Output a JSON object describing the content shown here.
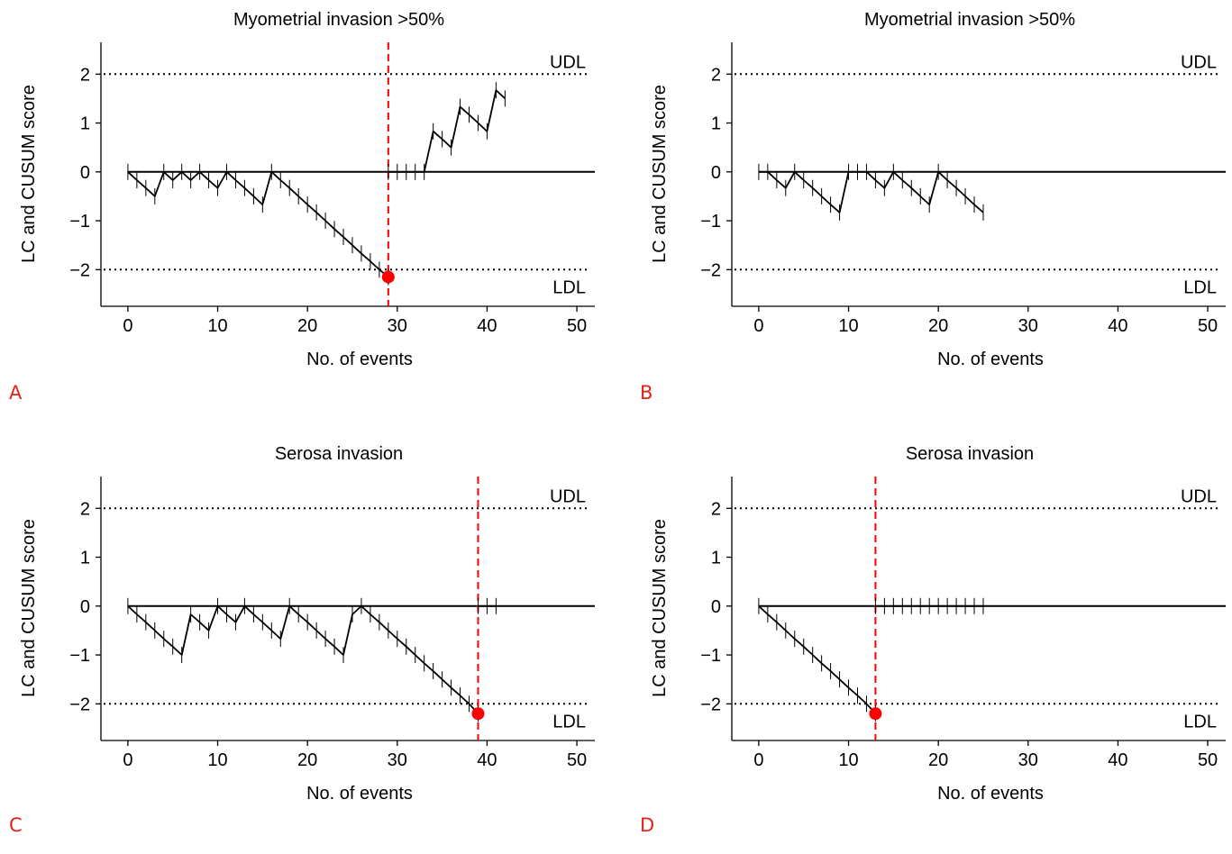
{
  "chart_data": [
    {
      "letter": "A",
      "type": "line",
      "title": "Myometrial invasion >50%",
      "xlabel": "No. of events",
      "ylabel": "LC and CUSUM score",
      "xlim": [
        -3,
        52
      ],
      "ylim": [
        -2.75,
        2.65
      ],
      "xticks": [
        0,
        10,
        20,
        30,
        40,
        50
      ],
      "yticks": [
        -2,
        -1,
        0,
        1,
        2
      ],
      "udl": 2,
      "ldl": -2,
      "udl_label": "UDL",
      "ldl_label": "LDL",
      "signal_x": 29,
      "signal_y": -2.15,
      "series": [
        {
          "x": [
            0,
            1,
            2,
            3,
            4,
            5,
            6,
            7,
            8,
            9,
            10,
            11,
            12,
            13,
            14,
            15,
            16,
            17,
            18,
            19,
            20,
            21,
            22,
            23,
            24,
            25,
            26,
            27,
            28,
            29
          ],
          "y": [
            0,
            -0.17,
            -0.33,
            -0.5,
            0,
            -0.17,
            0,
            -0.17,
            0,
            -0.17,
            -0.33,
            0,
            -0.17,
            -0.33,
            -0.5,
            -0.67,
            0,
            -0.17,
            -0.33,
            -0.5,
            -0.67,
            -0.83,
            -1,
            -1.17,
            -1.33,
            -1.5,
            -1.67,
            -1.83,
            -2,
            -2.15
          ]
        },
        {
          "x": [
            29,
            30,
            31,
            32,
            33,
            34,
            35,
            36,
            37,
            38,
            39,
            40,
            41,
            42
          ],
          "y": [
            0,
            0,
            0,
            0,
            0,
            0.83,
            0.67,
            0.5,
            1.33,
            1.17,
            1,
            0.83,
            1.67,
            1.5
          ]
        }
      ]
    },
    {
      "letter": "B",
      "type": "line",
      "title": "Myometrial invasion >50%",
      "xlabel": "No. of events",
      "ylabel": "LC and CUSUM score",
      "xlim": [
        -3,
        52
      ],
      "ylim": [
        -2.75,
        2.65
      ],
      "xticks": [
        0,
        10,
        20,
        30,
        40,
        50
      ],
      "yticks": [
        -2,
        -1,
        0,
        1,
        2
      ],
      "udl": 2,
      "ldl": -2,
      "udl_label": "UDL",
      "ldl_label": "LDL",
      "series": [
        {
          "x": [
            0,
            1,
            2,
            3,
            4,
            5,
            6,
            7,
            8,
            9,
            10,
            11,
            12,
            13,
            14,
            15,
            16,
            17,
            18,
            19,
            20,
            21,
            22,
            23,
            24,
            25
          ],
          "y": [
            0,
            0,
            -0.17,
            -0.33,
            0,
            -0.17,
            -0.33,
            -0.5,
            -0.67,
            -0.83,
            0,
            0,
            0,
            -0.17,
            -0.33,
            0,
            -0.17,
            -0.33,
            -0.5,
            -0.67,
            0,
            -0.17,
            -0.33,
            -0.5,
            -0.67,
            -0.83
          ]
        }
      ]
    },
    {
      "letter": "C",
      "type": "line",
      "title": "Serosa invasion",
      "xlabel": "No. of events",
      "ylabel": "LC and CUSUM score",
      "xlim": [
        -3,
        52
      ],
      "ylim": [
        -2.75,
        2.65
      ],
      "xticks": [
        0,
        10,
        20,
        30,
        40,
        50
      ],
      "yticks": [
        -2,
        -1,
        0,
        1,
        2
      ],
      "udl": 2,
      "ldl": -2,
      "udl_label": "UDL",
      "ldl_label": "LDL",
      "signal_x": 39,
      "signal_y": -2.2,
      "series": [
        {
          "x": [
            0,
            1,
            2,
            3,
            4,
            5,
            6,
            7,
            8,
            9,
            10,
            11,
            12,
            13,
            14,
            15,
            16,
            17,
            18,
            19,
            20,
            21,
            22,
            23,
            24,
            25,
            26,
            27,
            28,
            29,
            30,
            31,
            32,
            33,
            34,
            35,
            36,
            37,
            38,
            39
          ],
          "y": [
            0,
            -0.17,
            -0.33,
            -0.5,
            -0.67,
            -0.83,
            -1,
            -0.17,
            -0.33,
            -0.5,
            0,
            -0.17,
            -0.33,
            0,
            -0.17,
            -0.33,
            -0.5,
            -0.67,
            0,
            -0.17,
            -0.33,
            -0.5,
            -0.67,
            -0.83,
            -1,
            -0.17,
            0,
            -0.17,
            -0.33,
            -0.5,
            -0.67,
            -0.83,
            -1,
            -1.17,
            -1.33,
            -1.5,
            -1.67,
            -1.83,
            -2,
            -2.2
          ]
        },
        {
          "x": [
            39,
            40,
            41
          ],
          "y": [
            0,
            0,
            0
          ]
        }
      ]
    },
    {
      "letter": "D",
      "type": "line",
      "title": "Serosa invasion",
      "xlabel": "No. of events",
      "ylabel": "LC and CUSUM score",
      "xlim": [
        -3,
        52
      ],
      "ylim": [
        -2.75,
        2.65
      ],
      "xticks": [
        0,
        10,
        20,
        30,
        40,
        50
      ],
      "yticks": [
        -2,
        -1,
        0,
        1,
        2
      ],
      "udl": 2,
      "ldl": -2,
      "udl_label": "UDL",
      "ldl_label": "LDL",
      "signal_x": 13,
      "signal_y": -2.2,
      "series": [
        {
          "x": [
            0,
            1,
            2,
            3,
            4,
            5,
            6,
            7,
            8,
            9,
            10,
            11,
            12,
            13
          ],
          "y": [
            0,
            -0.17,
            -0.33,
            -0.5,
            -0.67,
            -0.83,
            -1,
            -1.17,
            -1.33,
            -1.5,
            -1.67,
            -1.83,
            -2,
            -2.2
          ]
        },
        {
          "x": [
            13,
            14,
            15,
            16,
            17,
            18,
            19,
            20,
            21,
            22,
            23,
            24,
            25
          ],
          "y": [
            0,
            0,
            0,
            0,
            0,
            0,
            0,
            0,
            0,
            0,
            0,
            0,
            0
          ]
        }
      ]
    }
  ],
  "colors": {
    "line": "#000000",
    "signal": "#ff0000",
    "panel_letter": "#e2231a"
  }
}
